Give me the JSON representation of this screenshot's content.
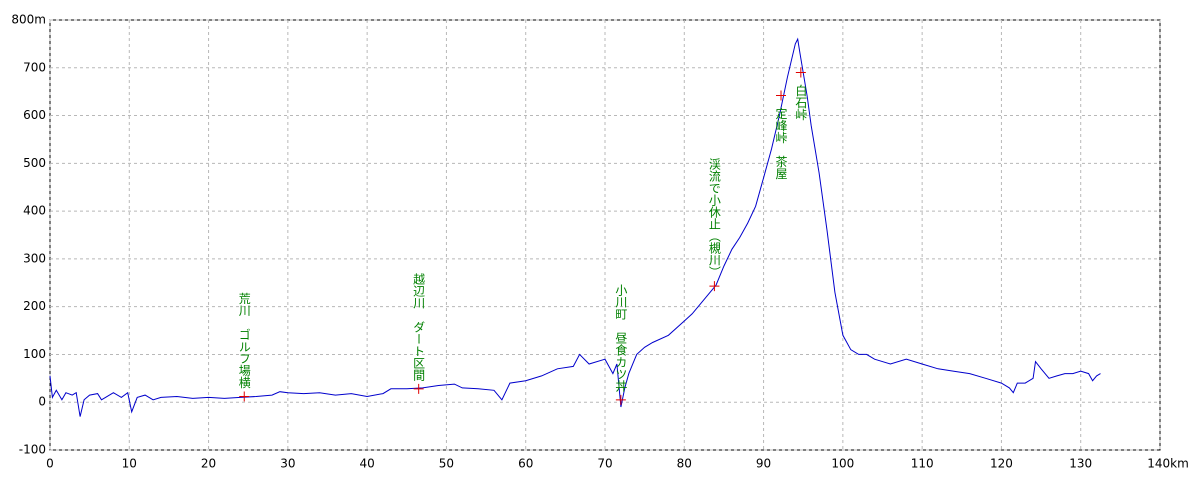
{
  "chart_data": {
    "type": "line",
    "xlim": [
      0,
      140
    ],
    "xticks": [
      0,
      10,
      20,
      30,
      40,
      50,
      60,
      70,
      80,
      90,
      100,
      110,
      120,
      130,
      {
        "value": 140,
        "label": "140km"
      }
    ],
    "ylim": [
      -100,
      800
    ],
    "yticks": [
      -100,
      0,
      100,
      200,
      300,
      400,
      500,
      600,
      700,
      {
        "value": 800,
        "label": "800m"
      }
    ],
    "grid": true,
    "series": [
      {
        "color": "#0000cc",
        "x": [
          0,
          0.3,
          0.8,
          1.5,
          2,
          2.8,
          3.3,
          3.8,
          4.3,
          5,
          6,
          6.5,
          7,
          8,
          9,
          9.8,
          10.3,
          11,
          12,
          13,
          14,
          16,
          18,
          20,
          22,
          24,
          26,
          28,
          29,
          30,
          32,
          34,
          36,
          38,
          40,
          42,
          43,
          45,
          47,
          49,
          51,
          52,
          54,
          56,
          57,
          58,
          60,
          62,
          64,
          66,
          66.8,
          68,
          70,
          71,
          71.5,
          72,
          72.5,
          73,
          74,
          75,
          76,
          78,
          80,
          81,
          82,
          83,
          84,
          85,
          86,
          87,
          88,
          89,
          90,
          91,
          92,
          93,
          94,
          94.3,
          94.6,
          95,
          95.5,
          96,
          97,
          98,
          99,
          100,
          101,
          102,
          103,
          104,
          106,
          108,
          110,
          112,
          114,
          116,
          118,
          120,
          121,
          121.5,
          122,
          123,
          124,
          124.3,
          125,
          126,
          127,
          128,
          129,
          130,
          131,
          131.5,
          132,
          132.5
        ],
        "values": [
          55,
          10,
          25,
          5,
          20,
          15,
          20,
          -30,
          5,
          15,
          18,
          5,
          10,
          20,
          10,
          20,
          -20,
          10,
          15,
          5,
          10,
          12,
          8,
          10,
          8,
          10,
          12,
          15,
          22,
          20,
          18,
          20,
          15,
          18,
          12,
          18,
          28,
          28,
          30,
          35,
          38,
          30,
          28,
          25,
          5,
          40,
          45,
          55,
          70,
          75,
          100,
          80,
          90,
          60,
          80,
          -10,
          30,
          60,
          100,
          115,
          125,
          140,
          170,
          185,
          205,
          225,
          245,
          285,
          320,
          345,
          375,
          410,
          470,
          530,
          600,
          680,
          750,
          760,
          730,
          690,
          640,
          580,
          480,
          360,
          230,
          140,
          110,
          100,
          100,
          90,
          80,
          90,
          80,
          70,
          65,
          60,
          50,
          40,
          30,
          20,
          40,
          40,
          50,
          85,
          70,
          50,
          55,
          60,
          60,
          65,
          60,
          45,
          55,
          60
        ]
      }
    ],
    "annotations": [
      {
        "text": "荒川　ゴルフ場横",
        "x": 24.5,
        "y": 12
      },
      {
        "text": "越辺川　ダート区間",
        "x": 46.5,
        "y": 28
      },
      {
        "text": "小川町　昼食カツ丼",
        "x": 72,
        "y": 5
      },
      {
        "text": "渓流で小休止（槻川）",
        "x": 83.8,
        "y": 243
      },
      {
        "text": "定峰峠　茶屋",
        "x": 92.2,
        "y": 642
      },
      {
        "text": "白石峠",
        "x": 94.7,
        "y": 690
      }
    ]
  }
}
